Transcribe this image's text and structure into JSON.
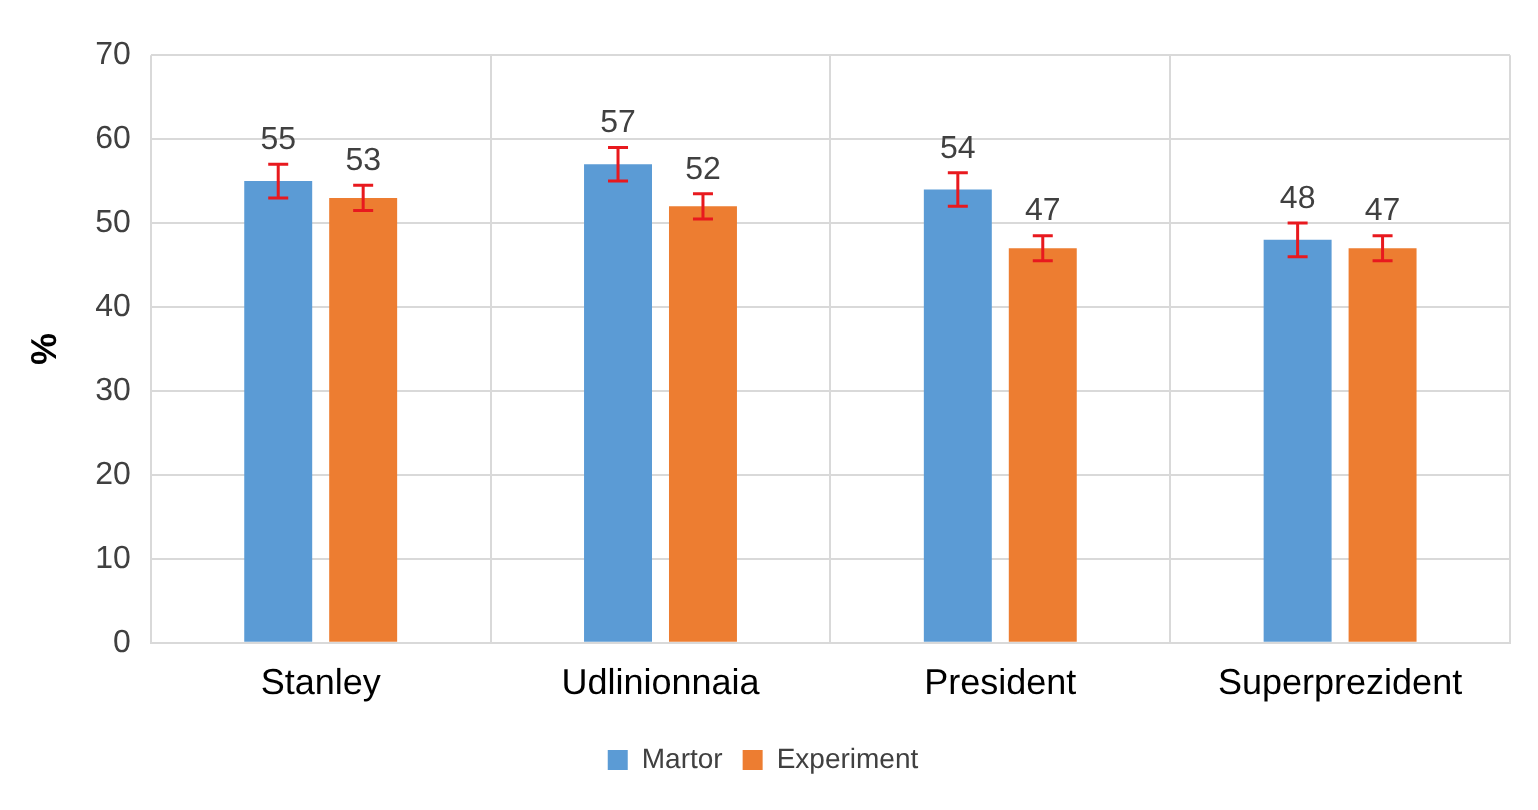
{
  "chart_data": {
    "type": "bar",
    "ylabel": "%",
    "categories": [
      "Stanley",
      "Udlinionnaia",
      "President",
      "Superprezident"
    ],
    "series": [
      {
        "name": "Martor",
        "color": "#5b9bd5",
        "values": [
          55,
          57,
          54,
          48
        ],
        "errors": [
          2,
          2,
          2,
          2
        ]
      },
      {
        "name": "Experiment",
        "color": "#ed7d31",
        "values": [
          53,
          52,
          47,
          47
        ],
        "errors": [
          1.5,
          1.5,
          1.5,
          1.5
        ]
      }
    ],
    "ylim": [
      0,
      70
    ],
    "yticks": [
      0,
      10,
      20,
      30,
      40,
      50,
      60,
      70
    ],
    "grid": true,
    "legend": "bottom",
    "data_labels": true
  }
}
